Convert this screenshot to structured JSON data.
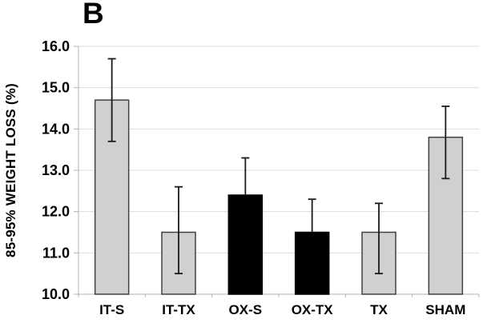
{
  "chart_data": {
    "type": "bar",
    "title": "B",
    "ylabel": "85-95% WEIGHT LOSS (%)",
    "xlabel": "",
    "categories": [
      "IT-S",
      "IT-TX",
      "OX-S",
      "OX-TX",
      "TX",
      "SHAM"
    ],
    "values": [
      14.7,
      11.5,
      12.4,
      11.5,
      11.5,
      13.8
    ],
    "error_high": [
      15.7,
      12.6,
      13.3,
      12.3,
      12.2,
      14.55
    ],
    "error_low": [
      13.7,
      10.5,
      null,
      null,
      10.5,
      12.8
    ],
    "bar_fill_colors": [
      "#d0d0d0",
      "#d0d0d0",
      "#000000",
      "#000000",
      "#d0d0d0",
      "#d0d0d0"
    ],
    "ylim": [
      10.0,
      16.0
    ],
    "ytick_labels": [
      "10.0",
      "11.0",
      "12.0",
      "13.0",
      "14.0",
      "15.0",
      "16.0"
    ],
    "grid": true,
    "legend": "none",
    "colors": {
      "background": "#ffffff",
      "gridline": "#dcdcdc",
      "axis_line": "#b4b4b4",
      "bar_border": "#404040",
      "error_bar": "#1a1a1a",
      "text": "#000000"
    }
  }
}
